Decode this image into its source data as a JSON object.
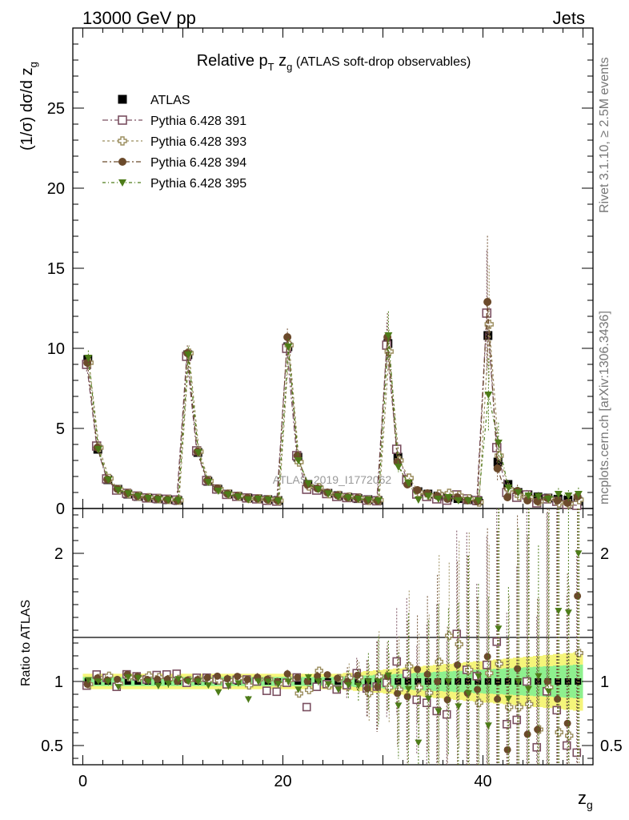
{
  "header": {
    "left": "13000 GeV pp",
    "right": "Jets"
  },
  "side": {
    "rivet": "Rivet 3.1.10, ≥ 2.5M events",
    "mcplots": "mcplots.cern.ch [arXiv:1306.3436]"
  },
  "watermark": "ATLAS_2019_I1772062",
  "chart_data": {
    "type": "scatter",
    "title_main": "Relative p",
    "title_sub1": "T",
    "title_mid": " z",
    "title_sub2": "g",
    "title_tail": " (ATLAS soft-drop observables)",
    "ylabel_main": "(1/σ) dσ/d z",
    "ylabel_sub": "g",
    "xlabel_main": "z",
    "xlabel_sub": "g",
    "ratio_ylabel": "Ratio to ATLAS",
    "xlim": [
      -1,
      51
    ],
    "ylim": [
      0,
      30
    ],
    "ratio_ylim": [
      0.35,
      2.35
    ],
    "x_ticks": [
      "0",
      "20",
      "40"
    ],
    "y_ticks": [
      "0",
      "5",
      "10",
      "15",
      "20",
      "25"
    ],
    "ratio_ticks": [
      "0.5",
      "1",
      "2"
    ],
    "legend_position": "top-left",
    "colors": {
      "ATLAS": "#000000",
      "p391": "#7a4f60",
      "p393": "#9b8d5e",
      "p394": "#6b4a2b",
      "p395": "#4d7c19",
      "band_inner": "#8ef08e",
      "band_outer": "#f5f57a"
    },
    "x": [
      0.5,
      1.5,
      2.5,
      3.5,
      4.5,
      5.5,
      6.5,
      7.5,
      8.5,
      9.5,
      10.5,
      11.5,
      12.5,
      13.5,
      14.5,
      15.5,
      16.5,
      17.5,
      18.5,
      19.5,
      20.5,
      21.5,
      22.5,
      23.5,
      24.5,
      25.5,
      26.5,
      27.5,
      28.5,
      29.5,
      30.5,
      31.5,
      32.5,
      33.5,
      34.5,
      35.5,
      36.5,
      37.5,
      38.5,
      39.5,
      40.5,
      41.5,
      42.5,
      43.5,
      44.5,
      45.5,
      46.5,
      47.5,
      48.5,
      49.5
    ],
    "series": [
      {
        "name": "ATLAS",
        "marker": "square-filled",
        "values": [
          9.3,
          3.7,
          1.8,
          1.2,
          0.9,
          0.75,
          0.65,
          0.6,
          0.55,
          0.5,
          9.6,
          3.5,
          1.7,
          1.2,
          0.9,
          0.75,
          0.65,
          0.6,
          0.55,
          0.5,
          10.1,
          3.2,
          1.5,
          1.2,
          0.95,
          0.8,
          0.7,
          0.62,
          0.55,
          0.5,
          10.3,
          3.2,
          1.7,
          1.05,
          0.9,
          0.78,
          0.7,
          0.62,
          0.55,
          0.48,
          10.8,
          2.9,
          1.5,
          1.0,
          0.85,
          0.72,
          0.65,
          0.58,
          0.52,
          0.45
        ]
      },
      {
        "name": "Pythia 6.428 391",
        "marker": "square-open",
        "values": [
          9.0,
          3.9,
          1.85,
          1.15,
          0.95,
          0.78,
          0.66,
          0.63,
          0.58,
          0.53,
          9.5,
          3.6,
          1.75,
          1.22,
          0.88,
          0.76,
          0.66,
          0.6,
          0.51,
          0.46,
          10.0,
          3.3,
          1.2,
          1.15,
          0.93,
          0.75,
          0.68,
          0.66,
          0.52,
          0.48,
          10.2,
          3.7,
          1.8,
          0.9,
          0.75,
          0.6,
          0.52,
          0.85,
          0.6,
          0.5,
          12.2,
          3.8,
          1.0,
          0.7,
          0.85,
          0.35,
          0.6,
          0.45,
          0.26,
          0.2
        ]
      },
      {
        "name": "Pythia 6.428 393",
        "marker": "cross-open",
        "values": [
          9.1,
          3.8,
          1.88,
          1.18,
          0.93,
          0.77,
          0.68,
          0.62,
          0.56,
          0.51,
          9.7,
          3.55,
          1.72,
          1.21,
          0.91,
          0.77,
          0.63,
          0.61,
          0.56,
          0.49,
          10.2,
          2.9,
          1.4,
          1.3,
          0.92,
          0.82,
          0.72,
          0.64,
          0.5,
          0.52,
          9.8,
          3.0,
          1.9,
          1.0,
          0.82,
          0.9,
          0.95,
          0.8,
          0.6,
          0.4,
          11.5,
          3.3,
          1.2,
          0.8,
          0.7,
          0.45,
          0.62,
          0.35,
          0.3,
          0.55
        ]
      },
      {
        "name": "Pythia 6.428 394",
        "marker": "circle-filled",
        "values": [
          9.1,
          3.8,
          1.82,
          1.22,
          0.95,
          0.78,
          0.66,
          0.61,
          0.56,
          0.5,
          9.7,
          3.55,
          1.75,
          1.25,
          0.92,
          0.78,
          0.66,
          0.62,
          0.56,
          0.5,
          10.7,
          3.3,
          1.5,
          1.25,
          1.0,
          0.82,
          0.7,
          0.65,
          0.52,
          0.48,
          10.7,
          2.9,
          1.5,
          1.15,
          0.95,
          0.78,
          0.6,
          0.7,
          0.5,
          0.45,
          12.9,
          2.5,
          0.7,
          1.1,
          0.5,
          0.45,
          0.65,
          0.5,
          0.35,
          0.75
        ]
      },
      {
        "name": "Pythia 6.428 395",
        "marker": "triangle-down",
        "values": [
          9.4,
          3.7,
          1.8,
          1.15,
          0.93,
          0.77,
          0.65,
          0.58,
          0.54,
          0.51,
          9.6,
          3.5,
          1.65,
          1.1,
          0.87,
          0.74,
          0.56,
          0.6,
          0.55,
          0.49,
          10.1,
          3.0,
          1.55,
          1.2,
          0.93,
          0.75,
          0.68,
          0.6,
          0.55,
          0.5,
          10.8,
          2.6,
          1.6,
          0.55,
          0.78,
          0.6,
          0.7,
          0.5,
          0.5,
          0.5,
          7.1,
          4.1,
          1.3,
          1.0,
          0.8,
          0.75,
          0.6,
          0.9,
          0.8,
          0.9
        ]
      }
    ]
  }
}
